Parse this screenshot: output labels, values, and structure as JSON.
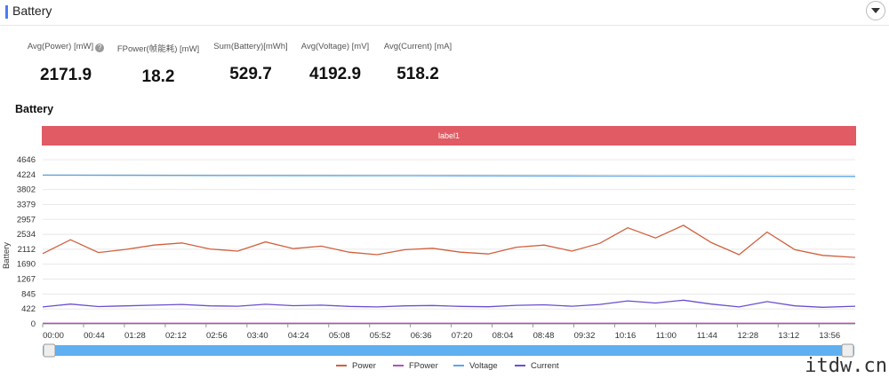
{
  "header": {
    "title": "Battery"
  },
  "stats": [
    {
      "label": "Avg(Power) [mW]",
      "value": "2171.9"
    },
    {
      "label": "FPower(帧能耗) [mW]",
      "value": "18.2"
    },
    {
      "label": "Sum(Battery)[mWh]",
      "value": "529.7"
    },
    {
      "label": "Avg(Voltage) [mV]",
      "value": "4192.9"
    },
    {
      "label": "Avg(Current) [mA]",
      "value": "518.2"
    }
  ],
  "section_title": "Battery",
  "band_label": "label1",
  "watermark": "itdw.cn",
  "chart_data": {
    "type": "line",
    "ylabel": "Battery",
    "y_ticks": [
      0,
      422,
      845,
      1267,
      1690,
      2112,
      2534,
      2957,
      3379,
      3802,
      4224,
      4646
    ],
    "x_ticks": [
      "00:00",
      "00:44",
      "01:28",
      "02:12",
      "02:56",
      "03:40",
      "04:24",
      "05:08",
      "05:52",
      "06:36",
      "07:20",
      "08:04",
      "08:48",
      "09:32",
      "10:16",
      "11:00",
      "11:44",
      "12:28",
      "13:12",
      "13:56"
    ],
    "ylim": [
      0,
      4646
    ],
    "x_range_seconds": [
      0,
      875
    ],
    "legend_position": "bottom",
    "series": [
      {
        "name": "Power",
        "color": "#d0603b",
        "x": [
          0,
          30,
          60,
          90,
          120,
          150,
          180,
          210,
          240,
          270,
          300,
          330,
          360,
          390,
          420,
          450,
          480,
          510,
          540,
          570,
          600,
          630,
          660,
          690,
          720,
          750,
          780,
          810,
          840,
          875
        ],
        "values": [
          1990,
          2380,
          2020,
          2110,
          2230,
          2290,
          2120,
          2060,
          2320,
          2130,
          2200,
          2030,
          1960,
          2100,
          2140,
          2030,
          1980,
          2170,
          2230,
          2060,
          2280,
          2720,
          2430,
          2790,
          2300,
          1960,
          2600,
          2100,
          1940,
          1880
        ]
      },
      {
        "name": "FPower",
        "color": "#b44fb8",
        "x": [
          0,
          875
        ],
        "values": [
          18,
          18
        ]
      },
      {
        "name": "Voltage",
        "color": "#5aa7e8",
        "x": [
          0,
          200,
          400,
          600,
          875
        ],
        "values": [
          4210,
          4200,
          4195,
          4185,
          4175
        ]
      },
      {
        "name": "Current",
        "color": "#6a4fd0",
        "x": [
          0,
          30,
          60,
          90,
          120,
          150,
          180,
          210,
          240,
          270,
          300,
          330,
          360,
          390,
          420,
          450,
          480,
          510,
          540,
          570,
          600,
          630,
          660,
          690,
          720,
          750,
          780,
          810,
          840,
          875
        ],
        "values": [
          480,
          560,
          490,
          510,
          530,
          550,
          510,
          500,
          555,
          515,
          530,
          495,
          480,
          510,
          520,
          495,
          485,
          525,
          540,
          500,
          550,
          650,
          590,
          670,
          560,
          480,
          630,
          510,
          470,
          500
        ]
      }
    ]
  }
}
